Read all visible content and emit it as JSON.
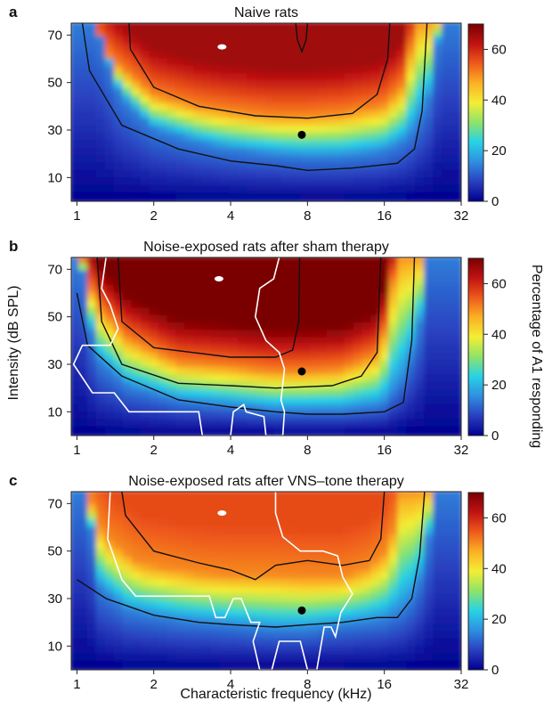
{
  "figure": {
    "ylabel": "Intensity (dB SPL)",
    "xlabel": "Characteristic frequency (kHz)",
    "colorbar_label": "Percentage of A1 responding"
  },
  "chart_data": [
    {
      "type": "heatmap",
      "panel_letter": "a",
      "title": "Naive rats",
      "x_scale": "log2",
      "xlim": [
        0.95,
        32
      ],
      "ylim": [
        0,
        75
      ],
      "xticks": [
        1,
        2,
        4,
        8,
        16,
        32
      ],
      "yticks": [
        10,
        30,
        50,
        70
      ],
      "color_range": [
        0,
        70
      ],
      "colorbar_ticks": [
        0,
        20,
        40,
        60
      ],
      "colormap": [
        "#00008f",
        "#2a3fbf",
        "#2f8fe0",
        "#27d2e6",
        "#8ee36a",
        "#f3ee35",
        "#fbb124",
        "#ef5a1b",
        "#c11212",
        "#7a0000"
      ],
      "threshold_curve": [
        [
          0.95,
          75
        ],
        [
          1.2,
          75
        ],
        [
          1.5,
          44
        ],
        [
          2,
          30
        ],
        [
          3,
          24
        ],
        [
          4,
          21
        ],
        [
          6,
          19
        ],
        [
          8,
          18
        ],
        [
          11,
          18
        ],
        [
          16,
          20
        ],
        [
          20,
          25
        ],
        [
          24,
          40
        ],
        [
          27,
          75
        ],
        [
          32,
          75
        ]
      ],
      "response_curve": [
        [
          0.95,
          75
        ],
        [
          1.1,
          75
        ],
        [
          1.4,
          58
        ],
        [
          2,
          44
        ],
        [
          3,
          39
        ],
        [
          4,
          37
        ],
        [
          6,
          35
        ],
        [
          8,
          35
        ],
        [
          11,
          36
        ],
        [
          16,
          39
        ],
        [
          19,
          47
        ],
        [
          22,
          75
        ],
        [
          32,
          75
        ]
      ],
      "peak_response": 66,
      "contours": [
        [
          [
            1.6,
            75
          ],
          [
            1.62,
            64
          ],
          [
            2,
            48
          ],
          [
            3,
            40
          ],
          [
            5,
            36
          ],
          [
            8,
            35
          ],
          [
            12,
            37
          ],
          [
            15,
            45
          ],
          [
            16.5,
            60
          ],
          [
            16.8,
            75
          ]
        ],
        [
          [
            1.05,
            75
          ],
          [
            1.12,
            55
          ],
          [
            1.5,
            32
          ],
          [
            2.5,
            22
          ],
          [
            4,
            17
          ],
          [
            6,
            15
          ],
          [
            8,
            13
          ],
          [
            12,
            14
          ],
          [
            18,
            16
          ],
          [
            21,
            22
          ],
          [
            22.5,
            38
          ],
          [
            23.5,
            75
          ]
        ],
        [
          [
            7.2,
            75
          ],
          [
            7.3,
            68
          ],
          [
            7.6,
            63
          ],
          [
            7.9,
            68
          ],
          [
            8,
            75
          ]
        ]
      ],
      "white_outline": [],
      "markers": [
        {
          "x": 3.7,
          "y": 65,
          "color": "#ffffff",
          "shape": "ellipse"
        },
        {
          "x": 7.6,
          "y": 28,
          "color": "#000000",
          "shape": "circle"
        }
      ]
    },
    {
      "type": "heatmap",
      "panel_letter": "b",
      "title": "Noise-exposed rats after sham therapy",
      "x_scale": "log2",
      "xlim": [
        0.95,
        32
      ],
      "ylim": [
        0,
        75
      ],
      "xticks": [
        1,
        2,
        4,
        8,
        16,
        32
      ],
      "yticks": [
        10,
        30,
        50,
        70
      ],
      "color_range": [
        0,
        70
      ],
      "colorbar_ticks": [
        0,
        20,
        40,
        60
      ],
      "colormap": [
        "#00008f",
        "#2a3fbf",
        "#2f8fe0",
        "#27d2e6",
        "#8ee36a",
        "#f3ee35",
        "#fbb124",
        "#ef5a1b",
        "#c11212",
        "#7a0000"
      ],
      "threshold_curve": [
        [
          0.95,
          75
        ],
        [
          1.05,
          75
        ],
        [
          1.2,
          32
        ],
        [
          1.6,
          20
        ],
        [
          2.5,
          14
        ],
        [
          4,
          12
        ],
        [
          6,
          10
        ],
        [
          8,
          10
        ],
        [
          11,
          10
        ],
        [
          16,
          12
        ],
        [
          19,
          22
        ],
        [
          22,
          40
        ],
        [
          24,
          75
        ],
        [
          32,
          75
        ]
      ],
      "response_curve": [
        [
          0.95,
          75
        ],
        [
          1.05,
          75
        ],
        [
          1.2,
          55
        ],
        [
          1.6,
          40
        ],
        [
          2.5,
          30
        ],
        [
          4,
          28
        ],
        [
          6,
          26
        ],
        [
          8,
          26
        ],
        [
          11,
          27
        ],
        [
          15,
          33
        ],
        [
          17,
          48
        ],
        [
          18,
          75
        ],
        [
          32,
          75
        ]
      ],
      "peak_response": 72,
      "contours": [
        [
          [
            1.45,
            75
          ],
          [
            1.5,
            48
          ],
          [
            2,
            37
          ],
          [
            4,
            33
          ],
          [
            6,
            33
          ],
          [
            7,
            36
          ],
          [
            7.4,
            48
          ],
          [
            7.45,
            75
          ]
        ],
        [
          [
            1.2,
            75
          ],
          [
            1.25,
            48
          ],
          [
            1.5,
            30
          ],
          [
            2.5,
            22
          ],
          [
            4,
            21
          ],
          [
            6,
            20
          ],
          [
            10,
            21
          ],
          [
            13,
            25
          ],
          [
            15,
            35
          ],
          [
            15.5,
            75
          ]
        ],
        [
          [
            1,
            60
          ],
          [
            1.1,
            38
          ],
          [
            1.5,
            25
          ],
          [
            2.5,
            15
          ],
          [
            4,
            12
          ],
          [
            6,
            10
          ],
          [
            8,
            9
          ],
          [
            11,
            9
          ],
          [
            16,
            10
          ],
          [
            19,
            14
          ],
          [
            20.5,
            40
          ],
          [
            21,
            75
          ]
        ]
      ],
      "white_outline": [
        [
          1.3,
          75
        ],
        [
          1.25,
          62
        ],
        [
          1.35,
          55
        ],
        [
          1.45,
          45
        ],
        [
          1.35,
          38
        ],
        [
          1.05,
          38
        ],
        [
          0.97,
          30
        ],
        [
          1.15,
          18
        ],
        [
          1.4,
          18
        ],
        [
          1.6,
          10
        ],
        [
          2,
          10
        ],
        [
          3,
          10
        ],
        [
          3.1,
          0
        ],
        [
          4,
          0
        ],
        [
          4.1,
          10
        ],
        [
          4.5,
          13
        ],
        [
          4.6,
          10
        ],
        [
          5.4,
          8
        ],
        [
          5.5,
          0
        ],
        [
          6.4,
          0
        ],
        [
          6.5,
          10
        ],
        [
          6.3,
          15
        ],
        [
          6.5,
          28
        ],
        [
          6.2,
          35
        ],
        [
          5.5,
          40
        ],
        [
          5,
          50
        ],
        [
          5.2,
          62
        ],
        [
          5.9,
          66
        ],
        [
          6.2,
          75
        ]
      ],
      "markers": [
        {
          "x": 3.6,
          "y": 66,
          "color": "#ffffff",
          "shape": "ellipse"
        },
        {
          "x": 7.6,
          "y": 27,
          "color": "#000000",
          "shape": "circle"
        }
      ]
    },
    {
      "type": "heatmap",
      "panel_letter": "c",
      "title": "Noise-exposed rats after VNS–tone therapy",
      "x_scale": "log2",
      "xlim": [
        0.95,
        32
      ],
      "ylim": [
        0,
        75
      ],
      "xticks": [
        1,
        2,
        4,
        8,
        16,
        32
      ],
      "yticks": [
        10,
        30,
        50,
        70
      ],
      "color_range": [
        0,
        70
      ],
      "colorbar_ticks": [
        0,
        20,
        40,
        60
      ],
      "colormap": [
        "#00008f",
        "#2a3fbf",
        "#2f8fe0",
        "#27d2e6",
        "#8ee36a",
        "#f3ee35",
        "#fbb124",
        "#ef5a1b",
        "#c11212",
        "#7a0000"
      ],
      "threshold_curve": [
        [
          0.95,
          75
        ],
        [
          1.1,
          75
        ],
        [
          1.25,
          34
        ],
        [
          1.6,
          24
        ],
        [
          2.5,
          20
        ],
        [
          4,
          18
        ],
        [
          6,
          16
        ],
        [
          8,
          16
        ],
        [
          11,
          18
        ],
        [
          16,
          20
        ],
        [
          20,
          25
        ],
        [
          23,
          40
        ],
        [
          26,
          75
        ],
        [
          32,
          75
        ]
      ],
      "response_curve": [
        [
          0.95,
          75
        ],
        [
          1.1,
          75
        ],
        [
          1.3,
          55
        ],
        [
          1.8,
          44
        ],
        [
          3,
          40
        ],
        [
          4,
          39
        ],
        [
          6,
          39
        ],
        [
          8,
          38
        ],
        [
          11,
          38
        ],
        [
          14,
          42
        ],
        [
          17,
          50
        ],
        [
          19,
          75
        ],
        [
          32,
          75
        ]
      ],
      "peak_response": 56,
      "contours": [
        [
          [
            1.5,
            75
          ],
          [
            1.55,
            65
          ],
          [
            2,
            50
          ],
          [
            3,
            45
          ],
          [
            4,
            42
          ],
          [
            5,
            38
          ],
          [
            6,
            44
          ],
          [
            8,
            46
          ],
          [
            11,
            44
          ],
          [
            14,
            46
          ],
          [
            15.5,
            55
          ],
          [
            16,
            75
          ]
        ],
        [
          [
            1,
            38
          ],
          [
            1.3,
            30
          ],
          [
            2,
            23
          ],
          [
            3,
            20
          ],
          [
            4,
            19
          ],
          [
            6,
            18
          ],
          [
            8,
            19
          ],
          [
            11,
            20
          ],
          [
            15,
            22
          ],
          [
            18,
            22
          ],
          [
            20.5,
            30
          ],
          [
            22,
            48
          ],
          [
            23,
            75
          ]
        ]
      ],
      "white_outline": [
        [
          1.35,
          75
        ],
        [
          1.32,
          55
        ],
        [
          1.5,
          38
        ],
        [
          1.7,
          31
        ],
        [
          3.3,
          31
        ],
        [
          3.5,
          22
        ],
        [
          3.8,
          22
        ],
        [
          4.1,
          30
        ],
        [
          4.4,
          30
        ],
        [
          4.8,
          20
        ],
        [
          5.2,
          20
        ],
        [
          4.9,
          12
        ],
        [
          5.2,
          0
        ],
        [
          5.8,
          0
        ],
        [
          6.2,
          12
        ],
        [
          7.5,
          12
        ],
        [
          8,
          0
        ],
        [
          8.7,
          0
        ],
        [
          9.3,
          18
        ],
        [
          9.9,
          18
        ],
        [
          10.3,
          14
        ],
        [
          10.8,
          24
        ],
        [
          12,
          32
        ],
        [
          11,
          39
        ],
        [
          10.5,
          48
        ],
        [
          9.2,
          50
        ],
        [
          7.5,
          50
        ],
        [
          6.4,
          56
        ],
        [
          6,
          66
        ],
        [
          6,
          75
        ]
      ],
      "markers": [
        {
          "x": 3.7,
          "y": 66,
          "color": "#ffffff",
          "shape": "ellipse"
        },
        {
          "x": 7.6,
          "y": 25,
          "color": "#000000",
          "shape": "circle"
        }
      ]
    }
  ]
}
